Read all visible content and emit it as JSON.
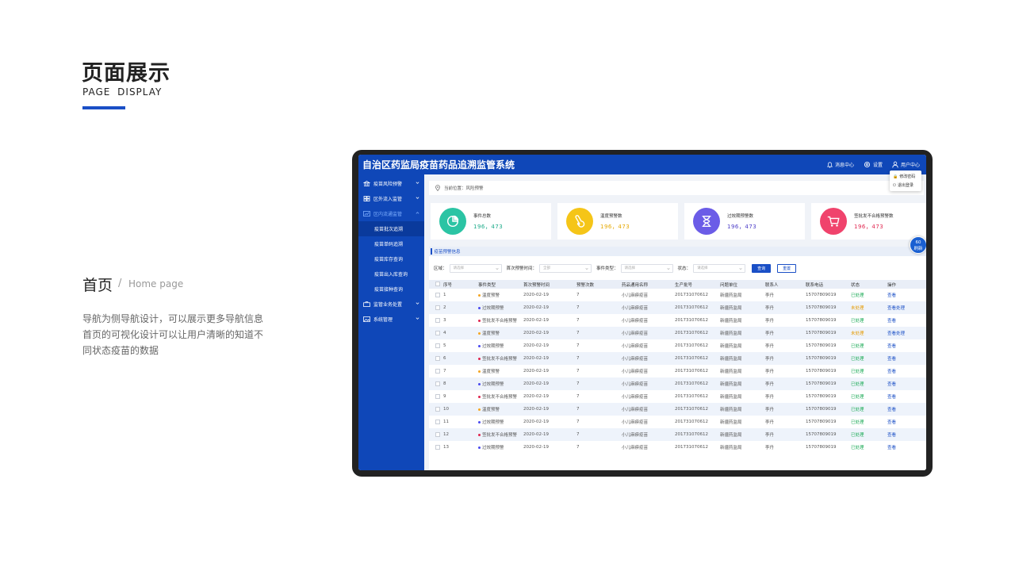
{
  "slide": {
    "title_cn": "页面展示",
    "title_en": "PAGE  DISPLAY",
    "section_cn": "首页",
    "section_sep": "/",
    "section_en": "Home page",
    "description_lines": [
      "导航为侧导航设计，可以展示更多导航信息",
      "首页的可视化设计可以让用户清晰的知道不",
      "同状态疫苗的数据"
    ],
    "accent_color": "#1a4fc6"
  },
  "app": {
    "title": "自治区药监局疫苗药品追溯监管系统",
    "top_actions": {
      "messages": "消息中心",
      "settings": "设置",
      "user": "用户中心"
    },
    "user_menu": {
      "change_password": "修改密码",
      "logout": "退出登录"
    },
    "brand_color": "#0f47b8"
  },
  "sidebar": {
    "items": [
      {
        "label": "疫苗风险预警",
        "icon": "bank-icon"
      },
      {
        "label": "区外流入监管",
        "icon": "grid-icon"
      },
      {
        "label": "区内流通监管",
        "icon": "chart-icon",
        "expanded": true,
        "children": [
          "疫苗批次追溯",
          "疫苗单码追溯",
          "疫苗库存查询",
          "疫苗出入库查询",
          "疫苗接种查询"
        ]
      },
      {
        "label": "监管业务处置",
        "icon": "briefcase-icon"
      },
      {
        "label": "系统管理",
        "icon": "image-icon"
      }
    ]
  },
  "breadcrumb": {
    "text": "当前位置：风险预警"
  },
  "stats": [
    {
      "label": "事件总数",
      "value": "196，473",
      "color": "#2bc4a4",
      "num_color": "#1aaa88",
      "icon": "pie-chart-icon"
    },
    {
      "label": "温度预警数",
      "value": "196，473",
      "color": "#f5c518",
      "num_color": "#e5a800",
      "icon": "thermometer-icon"
    },
    {
      "label": "过效期预警数",
      "value": "196，473",
      "color": "#6b5ce7",
      "num_color": "#4b3cc7",
      "icon": "hourglass-icon"
    },
    {
      "label": "签批发不合格预警数",
      "value": "196，473",
      "color": "#f0436c",
      "num_color": "#e0264f",
      "icon": "cart-icon"
    }
  ],
  "refresh": {
    "count": "60",
    "label": "刷新"
  },
  "panel": {
    "title": "疫苗预警信息"
  },
  "filters": {
    "region_label": "区域：",
    "region_placeholder": "请选择",
    "first_time_label": "首次预警时间：",
    "first_time_placeholder": "全部",
    "event_type_label": "事件类型：",
    "event_type_placeholder": "请选择",
    "status_label": "状态：",
    "status_placeholder": "请选择",
    "query_button": "查询",
    "reset_button": "重置"
  },
  "table": {
    "columns": [
      "序号",
      "事件类型",
      "首次预警时间",
      "预警次数",
      "药品通用名称",
      "生产批号",
      "问题单位",
      "联系人",
      "联系电话",
      "状态",
      "操作"
    ],
    "rows": [
      [
        "1",
        "温度预警",
        "2020-02-19",
        "7",
        "小儿麻痹疫苗",
        "201731070612",
        "新疆药监局",
        "李丹",
        "15707809019",
        "已处理",
        "查看"
      ],
      [
        "2",
        "过效期预警",
        "2020-02-19",
        "7",
        "小儿麻痹疫苗",
        "201731070612",
        "新疆药监局",
        "李丹",
        "15707809019",
        "未处理",
        "查看处理"
      ],
      [
        "3",
        "签批发不合格预警",
        "2020-02-19",
        "7",
        "小儿麻痹疫苗",
        "201731070612",
        "新疆药监局",
        "李丹",
        "15707809019",
        "已处理",
        "查看"
      ],
      [
        "4",
        "温度预警",
        "2020-02-19",
        "7",
        "小儿麻痹疫苗",
        "201731070612",
        "新疆药监局",
        "李丹",
        "15707809019",
        "未处理",
        "查看处理"
      ],
      [
        "5",
        "过效期预警",
        "2020-02-19",
        "7",
        "小儿麻痹疫苗",
        "201731070612",
        "新疆药监局",
        "李丹",
        "15707809019",
        "已处理",
        "查看"
      ],
      [
        "6",
        "签批发不合格预警",
        "2020-02-19",
        "7",
        "小儿麻痹疫苗",
        "201731070612",
        "新疆药监局",
        "李丹",
        "15707809019",
        "已处理",
        "查看"
      ],
      [
        "7",
        "温度预警",
        "2020-02-19",
        "7",
        "小儿麻痹疫苗",
        "201731070612",
        "新疆药监局",
        "李丹",
        "15707809019",
        "已处理",
        "查看"
      ],
      [
        "8",
        "过效期预警",
        "2020-02-19",
        "7",
        "小儿麻痹疫苗",
        "201731070612",
        "新疆药监局",
        "李丹",
        "15707809019",
        "已处理",
        "查看"
      ],
      [
        "9",
        "签批发不合格预警",
        "2020-02-19",
        "7",
        "小儿麻痹疫苗",
        "201731070612",
        "新疆药监局",
        "李丹",
        "15707809019",
        "已处理",
        "查看"
      ],
      [
        "10",
        "温度预警",
        "2020-02-19",
        "7",
        "小儿麻痹疫苗",
        "201731070612",
        "新疆药监局",
        "李丹",
        "15707809019",
        "已处理",
        "查看"
      ],
      [
        "11",
        "过效期预警",
        "2020-02-19",
        "7",
        "小儿麻痹疫苗",
        "201731070612",
        "新疆药监局",
        "李丹",
        "15707809019",
        "已处理",
        "查看"
      ],
      [
        "12",
        "签批发不合格预警",
        "2020-02-19",
        "7",
        "小儿麻痹疫苗",
        "201731070612",
        "新疆药监局",
        "李丹",
        "15707809019",
        "已处理",
        "查看"
      ],
      [
        "13",
        "过效期预警",
        "2020-02-19",
        "7",
        "小儿麻痹疫苗",
        "201731070612",
        "新疆药监局",
        "李丹",
        "15707809019",
        "已处理",
        "查看"
      ]
    ],
    "event_dot_colors": {
      "温度预警": "#f5a623",
      "过效期预警": "#4a4af0",
      "签批发不合格预警": "#e0264f"
    }
  }
}
